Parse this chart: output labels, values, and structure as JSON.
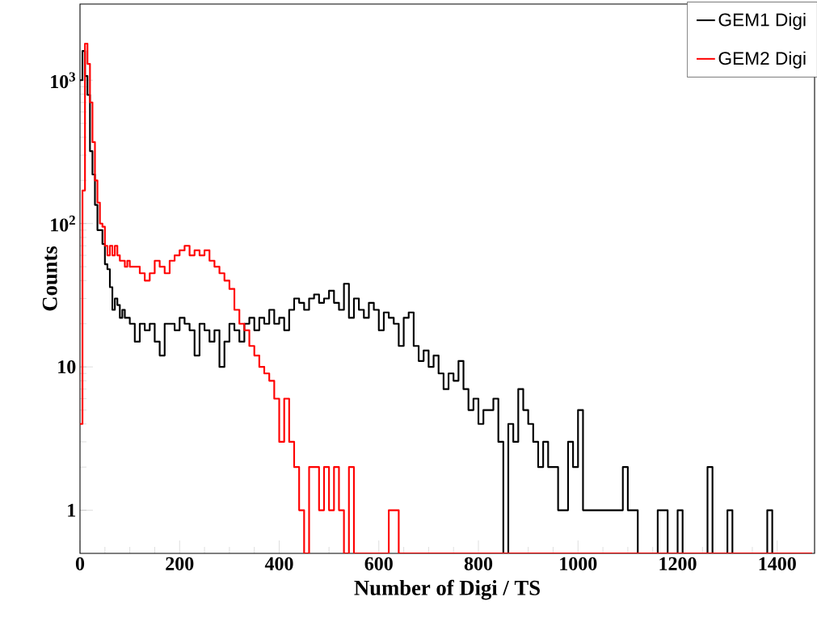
{
  "chart_data": {
    "type": "histogram",
    "xlabel": "Number of Digi / TS",
    "ylabel": "Counts",
    "log": "y",
    "legend": "top right",
    "marker": "none",
    "line_style": "solid",
    "xlim": [
      0,
      1475
    ],
    "ylim": [
      0.5,
      3400
    ],
    "xticks": [
      0,
      200,
      400,
      600,
      800,
      1000,
      1200,
      1400
    ],
    "yticks": [
      1,
      10,
      {
        "value": 100,
        "label": "10$^{2}$"
      },
      {
        "value": 1000,
        "label": "10$^{3}$"
      }
    ],
    "bins": [
      0,
      5,
      10,
      15,
      20,
      25,
      30,
      35,
      40,
      45,
      50,
      55,
      60,
      65,
      70,
      75,
      80,
      85,
      90,
      95,
      100,
      110,
      120,
      130,
      140,
      150,
      160,
      170,
      180,
      190,
      200,
      210,
      220,
      230,
      240,
      250,
      260,
      270,
      280,
      290,
      300,
      310,
      320,
      330,
      340,
      350,
      360,
      370,
      380,
      390,
      400,
      410,
      420,
      430,
      440,
      450,
      460,
      470,
      480,
      490,
      500,
      510,
      520,
      530,
      540,
      550,
      560,
      570,
      580,
      590,
      600,
      610,
      620,
      630,
      640,
      650,
      660,
      670,
      680,
      690,
      700,
      710,
      720,
      730,
      740,
      750,
      760,
      770,
      780,
      790,
      800,
      810,
      820,
      830,
      840,
      850,
      860,
      870,
      880,
      890,
      900,
      910,
      920,
      930,
      940,
      950,
      960,
      970,
      980,
      990,
      1000,
      1010,
      1020,
      1030,
      1040,
      1050,
      1060,
      1070,
      1080,
      1090,
      1100,
      1110,
      1120,
      1130,
      1140,
      1150,
      1160,
      1170,
      1180,
      1190,
      1200,
      1210,
      1220,
      1230,
      1240,
      1250,
      1260,
      1270,
      1280,
      1290,
      1300,
      1310,
      1320,
      1330,
      1340,
      1350,
      1360,
      1370,
      1380,
      1390,
      1400,
      1410,
      1420,
      1430,
      1440,
      1450,
      1460,
      1470
    ],
    "series": [
      {
        "name": "GEM1 Digi",
        "color": "#000000",
        "values": [
          1000,
          1600,
          1070,
          790,
          320,
          220,
          135,
          90,
          90,
          72,
          52,
          48,
          36,
          25,
          30,
          27,
          22,
          25,
          22,
          22,
          20,
          15,
          20,
          18,
          20,
          15,
          12,
          20,
          20,
          18,
          22,
          20,
          18,
          12,
          20,
          18,
          15,
          18,
          10,
          15,
          20,
          18,
          15,
          20,
          22,
          18,
          22,
          20,
          25,
          20,
          22,
          18,
          25,
          30,
          28,
          25,
          30,
          32,
          28,
          30,
          34,
          28,
          25,
          38,
          22,
          30,
          25,
          22,
          28,
          25,
          18,
          24,
          22,
          20,
          14,
          22,
          24,
          14,
          11,
          13,
          10,
          12,
          9,
          7,
          9,
          8,
          11,
          7,
          5,
          6,
          4,
          5,
          5,
          6,
          3,
          null,
          4,
          3,
          7,
          5,
          4,
          3,
          2,
          3,
          2,
          2,
          1,
          1,
          3,
          2,
          5,
          1,
          1,
          1,
          1,
          1,
          1,
          1,
          1,
          2,
          1,
          1,
          null,
          null,
          null,
          null,
          1,
          1,
          null,
          null,
          1,
          null,
          null,
          null,
          null,
          null,
          2,
          null,
          null,
          null,
          1,
          null,
          null,
          null,
          null,
          null,
          null,
          null,
          1,
          null,
          null,
          null,
          null,
          null,
          null,
          null,
          null
        ]
      },
      {
        "name": "GEM2 Digi",
        "color": "#ff0000",
        "values": [
          4,
          170,
          1800,
          1300,
          700,
          370,
          200,
          140,
          100,
          95,
          70,
          60,
          70,
          60,
          70,
          60,
          55,
          55,
          50,
          55,
          50,
          50,
          45,
          40,
          45,
          55,
          50,
          45,
          55,
          60,
          65,
          70,
          60,
          65,
          60,
          65,
          55,
          50,
          45,
          40,
          35,
          25,
          20,
          18,
          14,
          12,
          10,
          9,
          8,
          6,
          3,
          6,
          3,
          2,
          1,
          null,
          2,
          2,
          1,
          2,
          1,
          2,
          1,
          null,
          2,
          null,
          null,
          null,
          null,
          null,
          null,
          null,
          1,
          1,
          null,
          null,
          null,
          null,
          null,
          null,
          null,
          null,
          null,
          null,
          null,
          null,
          null,
          null,
          null,
          null,
          null,
          null,
          null,
          null,
          null,
          null,
          null,
          null,
          null,
          null,
          null,
          null,
          null,
          null,
          null,
          null,
          null,
          null,
          null,
          null,
          null,
          null,
          null,
          null,
          null,
          null,
          null,
          null,
          null,
          null,
          null,
          null,
          null,
          null,
          null,
          null,
          null,
          null,
          null,
          null,
          null,
          null,
          null,
          null,
          null,
          null,
          null,
          null,
          null,
          null,
          null,
          null,
          null,
          null,
          null,
          null,
          null,
          null,
          null,
          null,
          null,
          null,
          null,
          null,
          null,
          null,
          null
        ]
      }
    ]
  }
}
